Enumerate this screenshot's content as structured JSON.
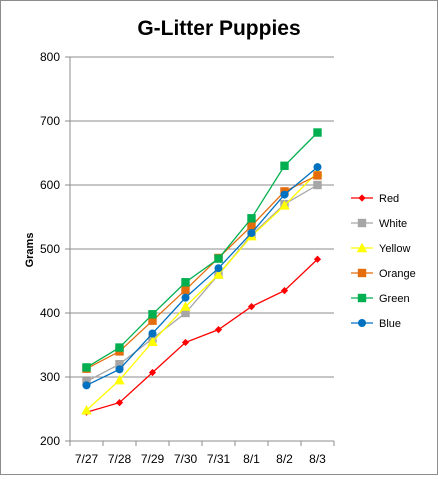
{
  "chart_data": {
    "type": "line",
    "title": "G-Litter Puppies",
    "xlabel": "",
    "ylabel": "Grams",
    "categories": [
      "7/27",
      "7/28",
      "7/29",
      "7/30",
      "7/31",
      "8/1",
      "8/2",
      "8/3"
    ],
    "ylim": [
      200,
      800
    ],
    "yticks": [
      200,
      300,
      400,
      500,
      600,
      700,
      800
    ],
    "grid": "horizontal",
    "legend_position": "right",
    "series": [
      {
        "name": "Red",
        "color": "#ff0000",
        "marker": "diamond",
        "values": [
          245,
          260,
          307,
          354,
          374,
          410,
          435,
          484
        ]
      },
      {
        "name": "White",
        "color": "#a6a6a6",
        "marker": "square",
        "values": [
          293,
          320,
          360,
          400,
          460,
          522,
          570,
          600
        ]
      },
      {
        "name": "Yellow",
        "color": "#ffff00",
        "marker": "triangle",
        "values": [
          248,
          295,
          355,
          410,
          460,
          520,
          568,
          620
        ]
      },
      {
        "name": "Orange",
        "color": "#e46c0a",
        "marker": "square",
        "values": [
          313,
          340,
          388,
          436,
          486,
          536,
          590,
          615
        ]
      },
      {
        "name": "Green",
        "color": "#00b050",
        "marker": "square",
        "values": [
          315,
          346,
          398,
          448,
          485,
          548,
          630,
          682
        ]
      },
      {
        "name": "Blue",
        "color": "#0070c0",
        "marker": "circle",
        "values": [
          287,
          312,
          368,
          424,
          470,
          525,
          585,
          628
        ]
      }
    ]
  }
}
